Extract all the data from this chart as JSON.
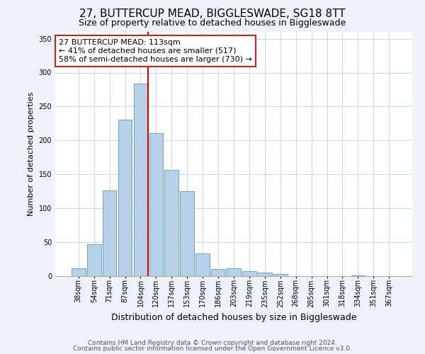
{
  "title": "27, BUTTERCUP MEAD, BIGGLESWADE, SG18 8TT",
  "subtitle": "Size of property relative to detached houses in Biggleswade",
  "xlabel": "Distribution of detached houses by size in Biggleswade",
  "ylabel": "Number of detached properties",
  "bin_labels": [
    "38sqm",
    "54sqm",
    "71sqm",
    "87sqm",
    "104sqm",
    "120sqm",
    "137sqm",
    "153sqm",
    "170sqm",
    "186sqm",
    "203sqm",
    "219sqm",
    "235sqm",
    "252sqm",
    "268sqm",
    "285sqm",
    "301sqm",
    "318sqm",
    "334sqm",
    "351sqm",
    "367sqm"
  ],
  "bar_values": [
    11,
    47,
    126,
    231,
    284,
    211,
    157,
    125,
    33,
    10,
    11,
    7,
    5,
    3,
    0,
    0,
    0,
    0,
    1,
    0,
    0
  ],
  "bar_color": "#b8d0e8",
  "bar_edge_color": "#6ba3c8",
  "vline_color": "#cc0000",
  "vline_x": 4.5,
  "annotation_text": "27 BUTTERCUP MEAD: 113sqm\n← 41% of detached houses are smaller (517)\n58% of semi-detached houses are larger (730) →",
  "annotation_box_color": "#ffffff",
  "annotation_box_edge": "#cc2222",
  "ylim": [
    0,
    360
  ],
  "yticks": [
    0,
    50,
    100,
    150,
    200,
    250,
    300,
    350
  ],
  "footer1": "Contains HM Land Registry data © Crown copyright and database right 2024.",
  "footer2": "Contains public sector information licensed under the Open Government Licence v3.0.",
  "bg_color": "#eef2f8",
  "plot_bg_color": "#ffffff",
  "grid_color": "#c8d4e8",
  "title_fontsize": 11,
  "subtitle_fontsize": 9,
  "ylabel_fontsize": 8,
  "xlabel_fontsize": 9,
  "tick_fontsize": 7,
  "annot_fontsize": 8,
  "footer_fontsize": 6.5
}
